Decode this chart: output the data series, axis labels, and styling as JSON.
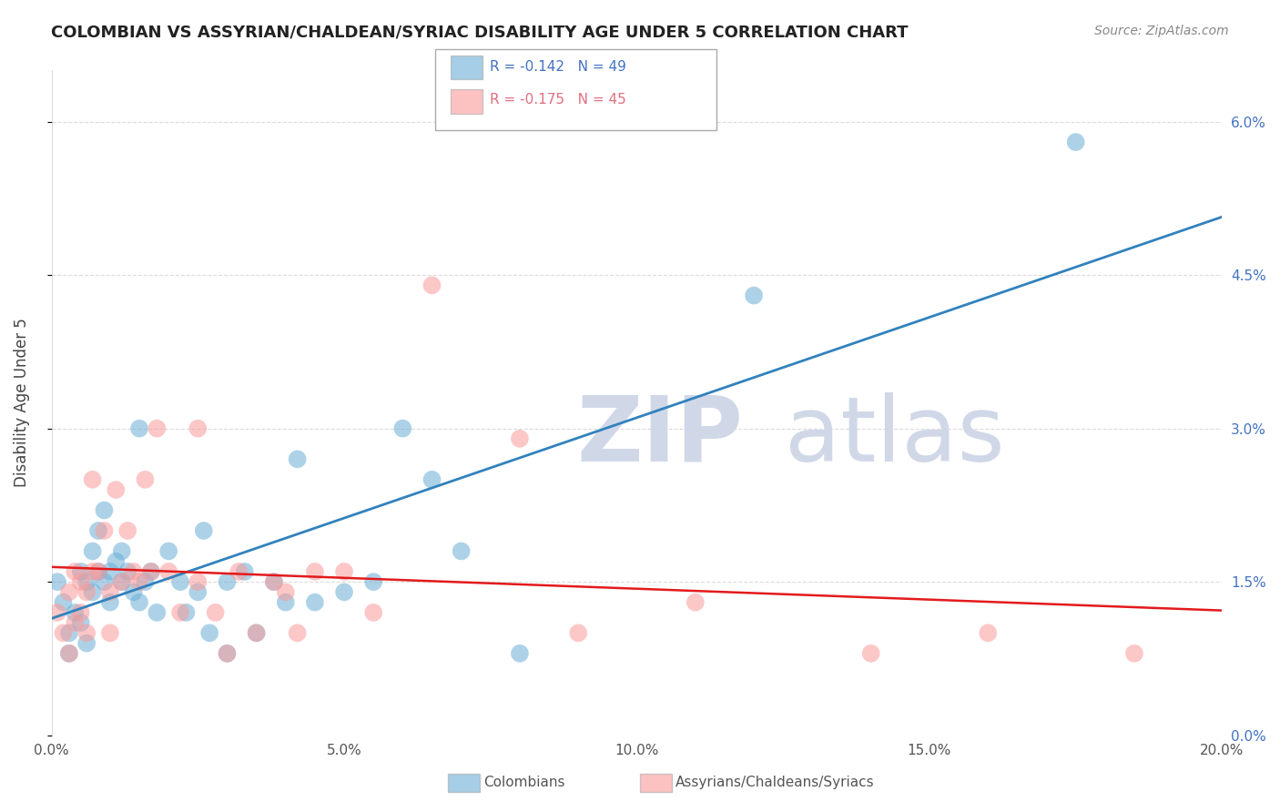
{
  "title": "COLOMBIAN VS ASSYRIAN/CHALDEAN/SYRIAC DISABILITY AGE UNDER 5 CORRELATION CHART",
  "source": "Source: ZipAtlas.com",
  "xlabel": "",
  "ylabel": "Disability Age Under 5",
  "xlim": [
    0.0,
    0.2
  ],
  "ylim": [
    0.0,
    0.065
  ],
  "xticks": [
    0.0,
    0.05,
    0.1,
    0.15,
    0.2
  ],
  "xtick_labels": [
    "0.0%",
    "5.0%",
    "10.0%",
    "15.0%",
    "20.0%"
  ],
  "ytick_labels_right": [
    "0.0%",
    "1.5%",
    "3.0%",
    "4.5%",
    "6.0%"
  ],
  "yticks_right": [
    0.0,
    0.015,
    0.03,
    0.045,
    0.06
  ],
  "colombian_R": "-0.142",
  "colombian_N": "49",
  "assyrian_R": "-0.175",
  "assyrian_N": "45",
  "colombian_color": "#6baed6",
  "assyrian_color": "#fb9a99",
  "trend_colombian_color": "#3182bd",
  "trend_assyrian_color": "#e31a1c",
  "watermark_color": "#d0d8e8",
  "background_color": "#ffffff",
  "grid_color": "#cccccc",
  "colombian_x": [
    0.001,
    0.002,
    0.003,
    0.003,
    0.004,
    0.005,
    0.005,
    0.006,
    0.006,
    0.007,
    0.007,
    0.008,
    0.008,
    0.009,
    0.009,
    0.01,
    0.01,
    0.011,
    0.012,
    0.012,
    0.013,
    0.014,
    0.015,
    0.015,
    0.016,
    0.017,
    0.018,
    0.02,
    0.022,
    0.023,
    0.025,
    0.026,
    0.027,
    0.03,
    0.03,
    0.033,
    0.035,
    0.038,
    0.04,
    0.042,
    0.045,
    0.05,
    0.055,
    0.06,
    0.065,
    0.07,
    0.08,
    0.12,
    0.175
  ],
  "colombian_y": [
    0.015,
    0.013,
    0.01,
    0.008,
    0.012,
    0.016,
    0.011,
    0.015,
    0.009,
    0.014,
    0.018,
    0.016,
    0.02,
    0.015,
    0.022,
    0.016,
    0.013,
    0.017,
    0.018,
    0.015,
    0.016,
    0.014,
    0.013,
    0.03,
    0.015,
    0.016,
    0.012,
    0.018,
    0.015,
    0.012,
    0.014,
    0.02,
    0.01,
    0.015,
    0.008,
    0.016,
    0.01,
    0.015,
    0.013,
    0.027,
    0.013,
    0.014,
    0.015,
    0.03,
    0.025,
    0.018,
    0.008,
    0.043,
    0.058
  ],
  "assyrian_x": [
    0.001,
    0.002,
    0.003,
    0.003,
    0.004,
    0.004,
    0.005,
    0.005,
    0.006,
    0.006,
    0.007,
    0.007,
    0.008,
    0.009,
    0.01,
    0.01,
    0.011,
    0.012,
    0.013,
    0.014,
    0.015,
    0.016,
    0.017,
    0.018,
    0.02,
    0.022,
    0.025,
    0.025,
    0.028,
    0.03,
    0.032,
    0.035,
    0.038,
    0.04,
    0.042,
    0.045,
    0.05,
    0.055,
    0.065,
    0.08,
    0.09,
    0.11,
    0.14,
    0.16,
    0.185
  ],
  "assyrian_y": [
    0.012,
    0.01,
    0.014,
    0.008,
    0.011,
    0.016,
    0.015,
    0.012,
    0.014,
    0.01,
    0.025,
    0.016,
    0.016,
    0.02,
    0.014,
    0.01,
    0.024,
    0.015,
    0.02,
    0.016,
    0.015,
    0.025,
    0.016,
    0.03,
    0.016,
    0.012,
    0.015,
    0.03,
    0.012,
    0.008,
    0.016,
    0.01,
    0.015,
    0.014,
    0.01,
    0.016,
    0.016,
    0.012,
    0.044,
    0.029,
    0.01,
    0.013,
    0.008,
    0.01,
    0.008
  ]
}
